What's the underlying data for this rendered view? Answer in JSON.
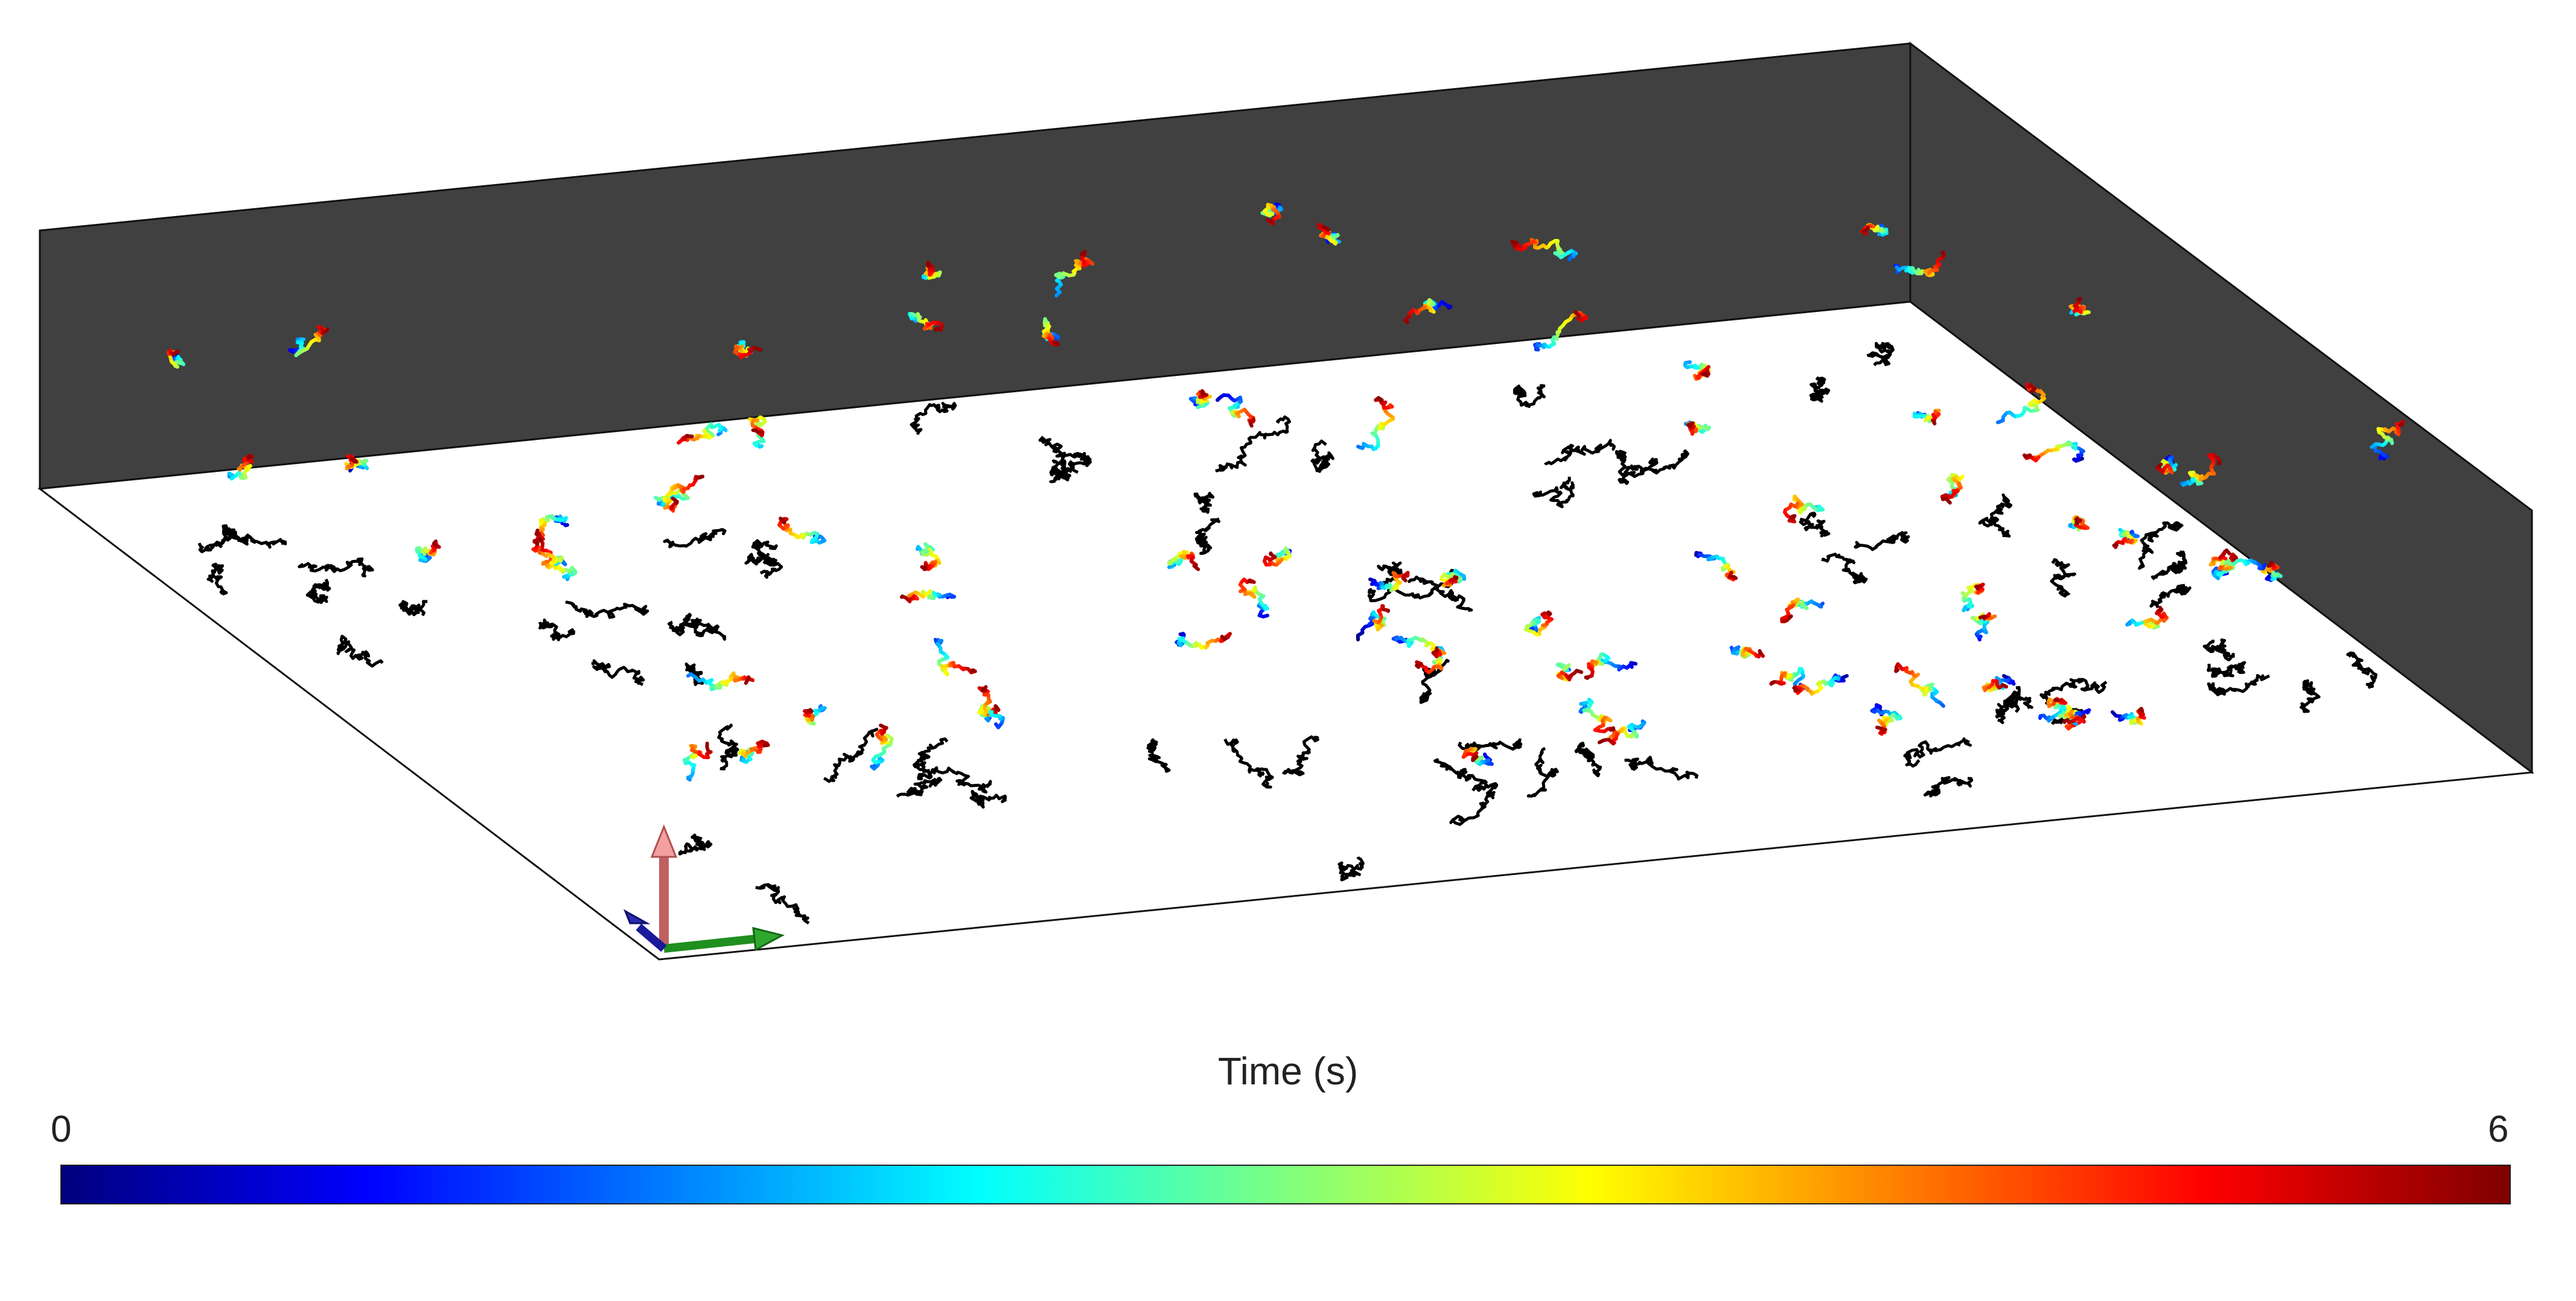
{
  "colorbar": {
    "title": "Time (s)",
    "min_label": "0",
    "max_label": "6",
    "range": [
      0,
      6
    ],
    "colormap": "jet"
  },
  "scene": {
    "projection_color": "#000000",
    "wall_color": "#404040",
    "floor_color": "#ffffff",
    "axis_colors": {
      "vertical": "#e07070",
      "horizontal": "#1f8f1f",
      "depth": "#1a1a9a"
    }
  }
}
